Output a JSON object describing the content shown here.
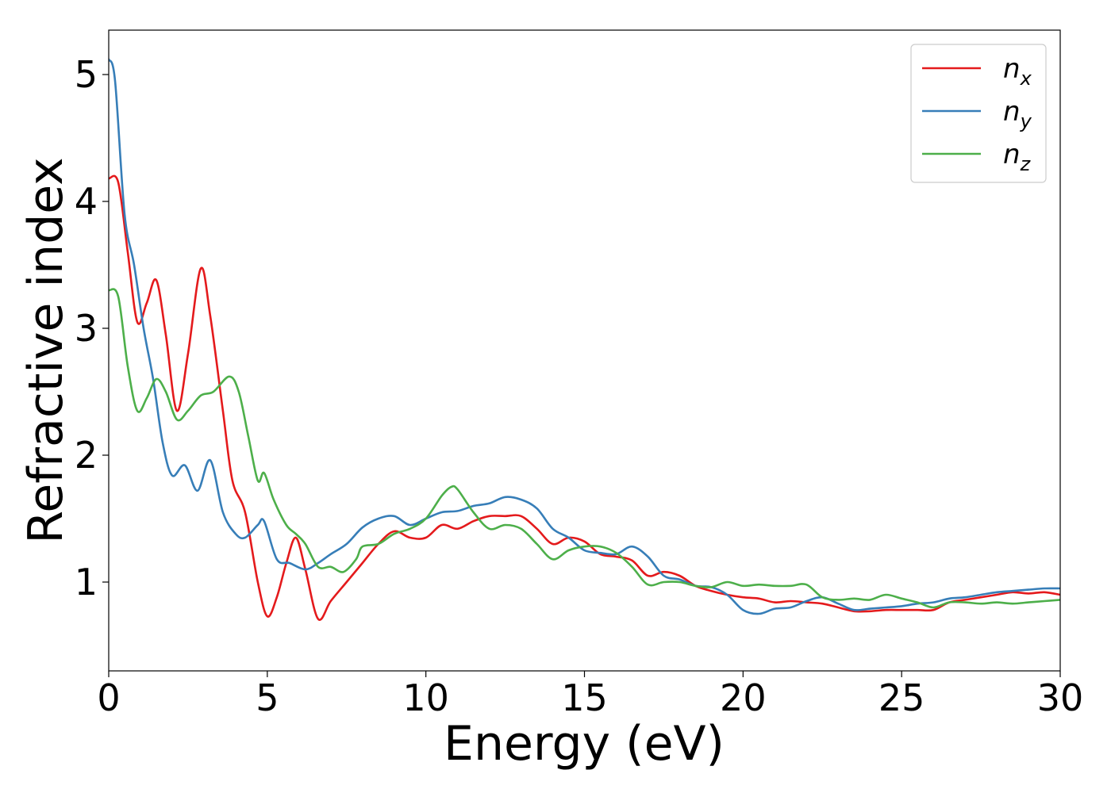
{
  "chart_data": {
    "type": "line",
    "title": "",
    "xlabel": "Energy (eV)",
    "ylabel": "Refractive index",
    "xlim": [
      0,
      30
    ],
    "ylim": [
      0.3,
      5.35
    ],
    "xticks": [
      0,
      5,
      10,
      15,
      20,
      25,
      30
    ],
    "yticks": [
      1,
      2,
      3,
      4,
      5
    ],
    "grid": false,
    "legend_position": "top-right",
    "series": [
      {
        "name": "n_x",
        "label_base": "n",
        "label_sub": "x",
        "color": "#e41a1c",
        "points": [
          [
            0,
            4.18
          ],
          [
            0.3,
            4.15
          ],
          [
            0.6,
            3.6
          ],
          [
            0.9,
            3.05
          ],
          [
            1.2,
            3.2
          ],
          [
            1.5,
            3.38
          ],
          [
            1.8,
            2.95
          ],
          [
            2.15,
            2.35
          ],
          [
            2.5,
            2.8
          ],
          [
            2.9,
            3.47
          ],
          [
            3.2,
            3.1
          ],
          [
            3.6,
            2.35
          ],
          [
            3.9,
            1.8
          ],
          [
            4.3,
            1.55
          ],
          [
            4.7,
            1.0
          ],
          [
            5.0,
            0.73
          ],
          [
            5.3,
            0.88
          ],
          [
            5.6,
            1.15
          ],
          [
            5.9,
            1.35
          ],
          [
            6.2,
            1.1
          ],
          [
            6.6,
            0.71
          ],
          [
            7.0,
            0.85
          ],
          [
            7.5,
            1.0
          ],
          [
            8.0,
            1.15
          ],
          [
            8.5,
            1.3
          ],
          [
            9.0,
            1.4
          ],
          [
            9.5,
            1.35
          ],
          [
            10.0,
            1.35
          ],
          [
            10.5,
            1.45
          ],
          [
            11.0,
            1.42
          ],
          [
            11.5,
            1.48
          ],
          [
            12.0,
            1.52
          ],
          [
            12.5,
            1.52
          ],
          [
            13.0,
            1.52
          ],
          [
            13.5,
            1.42
          ],
          [
            14.0,
            1.3
          ],
          [
            14.5,
            1.35
          ],
          [
            15.0,
            1.32
          ],
          [
            15.5,
            1.22
          ],
          [
            16.0,
            1.2
          ],
          [
            16.5,
            1.17
          ],
          [
            17.0,
            1.05
          ],
          [
            17.5,
            1.08
          ],
          [
            18.0,
            1.05
          ],
          [
            18.5,
            0.97
          ],
          [
            19.0,
            0.93
          ],
          [
            19.5,
            0.9
          ],
          [
            20.0,
            0.88
          ],
          [
            20.5,
            0.87
          ],
          [
            21.0,
            0.84
          ],
          [
            21.5,
            0.85
          ],
          [
            22.0,
            0.84
          ],
          [
            22.5,
            0.83
          ],
          [
            23.0,
            0.8
          ],
          [
            23.5,
            0.77
          ],
          [
            24.0,
            0.77
          ],
          [
            24.5,
            0.78
          ],
          [
            25.0,
            0.78
          ],
          [
            25.5,
            0.78
          ],
          [
            26.0,
            0.78
          ],
          [
            26.5,
            0.84
          ],
          [
            27.0,
            0.86
          ],
          [
            27.5,
            0.88
          ],
          [
            28.0,
            0.9
          ],
          [
            28.5,
            0.92
          ],
          [
            29.0,
            0.91
          ],
          [
            29.5,
            0.92
          ],
          [
            30.0,
            0.9
          ]
        ]
      },
      {
        "name": "n_y",
        "label_base": "n",
        "label_sub": "y",
        "color": "#377eb8",
        "points": [
          [
            0,
            5.12
          ],
          [
            0.2,
            4.95
          ],
          [
            0.5,
            3.9
          ],
          [
            0.8,
            3.5
          ],
          [
            1.1,
            3.0
          ],
          [
            1.4,
            2.6
          ],
          [
            1.7,
            2.1
          ],
          [
            2.0,
            1.84
          ],
          [
            2.4,
            1.92
          ],
          [
            2.8,
            1.72
          ],
          [
            3.2,
            1.96
          ],
          [
            3.6,
            1.55
          ],
          [
            4.0,
            1.38
          ],
          [
            4.3,
            1.35
          ],
          [
            4.7,
            1.45
          ],
          [
            4.9,
            1.48
          ],
          [
            5.3,
            1.18
          ],
          [
            5.7,
            1.15
          ],
          [
            6.2,
            1.1
          ],
          [
            6.6,
            1.15
          ],
          [
            7.0,
            1.22
          ],
          [
            7.5,
            1.3
          ],
          [
            8.0,
            1.43
          ],
          [
            8.5,
            1.5
          ],
          [
            9.0,
            1.52
          ],
          [
            9.5,
            1.45
          ],
          [
            10.0,
            1.5
          ],
          [
            10.5,
            1.55
          ],
          [
            11.0,
            1.56
          ],
          [
            11.5,
            1.6
          ],
          [
            12.0,
            1.62
          ],
          [
            12.5,
            1.67
          ],
          [
            13.0,
            1.65
          ],
          [
            13.5,
            1.58
          ],
          [
            14.0,
            1.42
          ],
          [
            14.5,
            1.35
          ],
          [
            15.0,
            1.25
          ],
          [
            15.5,
            1.23
          ],
          [
            16.0,
            1.22
          ],
          [
            16.5,
            1.28
          ],
          [
            17.0,
            1.2
          ],
          [
            17.5,
            1.05
          ],
          [
            18.0,
            1.02
          ],
          [
            18.5,
            0.97
          ],
          [
            19.0,
            0.96
          ],
          [
            19.5,
            0.9
          ],
          [
            20.0,
            0.78
          ],
          [
            20.5,
            0.75
          ],
          [
            21.0,
            0.79
          ],
          [
            21.5,
            0.8
          ],
          [
            22.0,
            0.85
          ],
          [
            22.5,
            0.88
          ],
          [
            23.0,
            0.83
          ],
          [
            23.5,
            0.78
          ],
          [
            24.0,
            0.79
          ],
          [
            24.5,
            0.8
          ],
          [
            25.0,
            0.81
          ],
          [
            25.5,
            0.83
          ],
          [
            26.0,
            0.84
          ],
          [
            26.5,
            0.87
          ],
          [
            27.0,
            0.88
          ],
          [
            27.5,
            0.9
          ],
          [
            28.0,
            0.92
          ],
          [
            28.5,
            0.93
          ],
          [
            29.0,
            0.94
          ],
          [
            29.5,
            0.95
          ],
          [
            30.0,
            0.95
          ]
        ]
      },
      {
        "name": "n_z",
        "label_base": "n",
        "label_sub": "z",
        "color": "#4daf4a",
        "points": [
          [
            0,
            3.3
          ],
          [
            0.3,
            3.25
          ],
          [
            0.6,
            2.7
          ],
          [
            0.9,
            2.35
          ],
          [
            1.2,
            2.45
          ],
          [
            1.5,
            2.6
          ],
          [
            1.8,
            2.5
          ],
          [
            2.15,
            2.28
          ],
          [
            2.5,
            2.35
          ],
          [
            2.9,
            2.47
          ],
          [
            3.3,
            2.5
          ],
          [
            3.8,
            2.62
          ],
          [
            4.1,
            2.5
          ],
          [
            4.4,
            2.15
          ],
          [
            4.7,
            1.8
          ],
          [
            4.9,
            1.86
          ],
          [
            5.2,
            1.65
          ],
          [
            5.6,
            1.45
          ],
          [
            5.9,
            1.38
          ],
          [
            6.2,
            1.3
          ],
          [
            6.6,
            1.12
          ],
          [
            7.0,
            1.12
          ],
          [
            7.4,
            1.08
          ],
          [
            7.8,
            1.18
          ],
          [
            8.0,
            1.28
          ],
          [
            8.5,
            1.3
          ],
          [
            9.0,
            1.38
          ],
          [
            9.5,
            1.42
          ],
          [
            10.0,
            1.5
          ],
          [
            10.5,
            1.68
          ],
          [
            10.8,
            1.75
          ],
          [
            11.0,
            1.73
          ],
          [
            11.5,
            1.55
          ],
          [
            12.0,
            1.42
          ],
          [
            12.5,
            1.45
          ],
          [
            13.0,
            1.42
          ],
          [
            13.5,
            1.3
          ],
          [
            14.0,
            1.18
          ],
          [
            14.5,
            1.25
          ],
          [
            15.0,
            1.28
          ],
          [
            15.5,
            1.28
          ],
          [
            16.0,
            1.23
          ],
          [
            16.5,
            1.12
          ],
          [
            17.0,
            0.98
          ],
          [
            17.5,
            1.0
          ],
          [
            18.0,
            1.0
          ],
          [
            18.5,
            0.97
          ],
          [
            19.0,
            0.96
          ],
          [
            19.5,
            1.0
          ],
          [
            20.0,
            0.97
          ],
          [
            20.5,
            0.98
          ],
          [
            21.0,
            0.97
          ],
          [
            21.5,
            0.97
          ],
          [
            22.0,
            0.98
          ],
          [
            22.5,
            0.88
          ],
          [
            23.0,
            0.86
          ],
          [
            23.5,
            0.87
          ],
          [
            24.0,
            0.86
          ],
          [
            24.5,
            0.9
          ],
          [
            25.0,
            0.87
          ],
          [
            25.5,
            0.84
          ],
          [
            26.0,
            0.8
          ],
          [
            26.5,
            0.84
          ],
          [
            27.0,
            0.84
          ],
          [
            27.5,
            0.83
          ],
          [
            28.0,
            0.84
          ],
          [
            28.5,
            0.83
          ],
          [
            29.0,
            0.84
          ],
          [
            29.5,
            0.85
          ],
          [
            30.0,
            0.86
          ]
        ]
      }
    ]
  }
}
